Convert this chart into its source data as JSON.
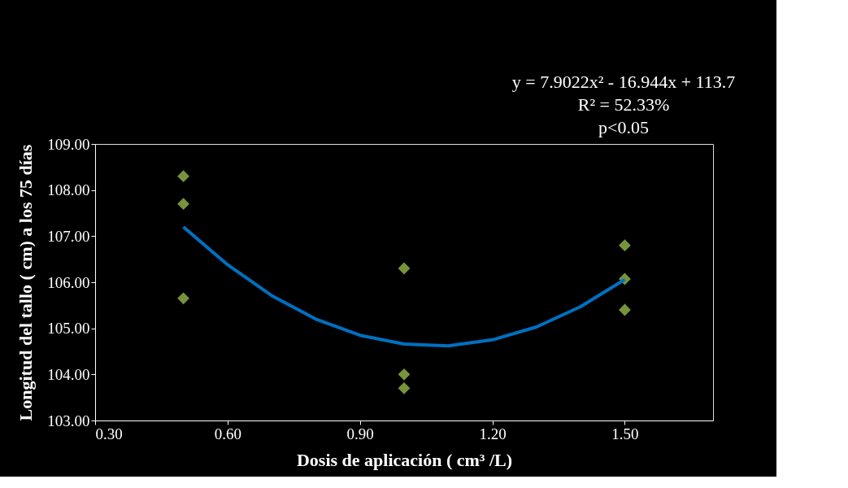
{
  "chart_data": {
    "type": "scatter",
    "xlabel": "Dosis de aplicación  ( cm³ /L)",
    "ylabel": "Longitud del tallo ( cm) a los 75 días",
    "annotations": [
      "y = 7.9022x² - 16.944x + 113.7",
      "R² = 52.33%",
      "p<0.05"
    ],
    "series": [
      {
        "color": "#77933c",
        "marker": "diamond",
        "x": [
          0.5,
          0.5,
          0.5,
          1.0,
          1.0,
          1.0,
          1.5,
          1.5,
          1.5
        ],
        "values": [
          108.3,
          107.7,
          105.65,
          106.3,
          104.0,
          103.7,
          106.8,
          106.07,
          105.4
        ]
      },
      {
        "type": "line",
        "color": "#0070c0",
        "marker": "none",
        "x": [
          0.5,
          0.6,
          0.7,
          0.8,
          0.9,
          1.0,
          1.1,
          1.2,
          1.3,
          1.4,
          1.5
        ],
        "values": [
          107.2,
          106.38,
          105.71,
          105.2,
          104.85,
          104.66,
          104.62,
          104.75,
          105.03,
          105.47,
          106.06
        ]
      }
    ],
    "xlim": [
      0.3,
      1.7
    ],
    "ylim": [
      103,
      109
    ],
    "xticks": [
      {
        "value": 0.3,
        "label": "0.30"
      },
      {
        "value": 0.6,
        "label": "0.60"
      },
      {
        "value": 0.9,
        "label": "0.90"
      },
      {
        "value": 1.2,
        "label": "1.20"
      },
      {
        "value": 1.5,
        "label": "1.50"
      }
    ],
    "yticks": [
      {
        "value": 103,
        "label": "103.00"
      },
      {
        "value": 104,
        "label": "104.00"
      },
      {
        "value": 105,
        "label": "105.00"
      },
      {
        "value": 106,
        "label": "106.00"
      },
      {
        "value": 107,
        "label": "107.00"
      },
      {
        "value": 108,
        "label": "108.00"
      },
      {
        "value": 109,
        "label": "109.00"
      }
    ],
    "grid": false
  }
}
